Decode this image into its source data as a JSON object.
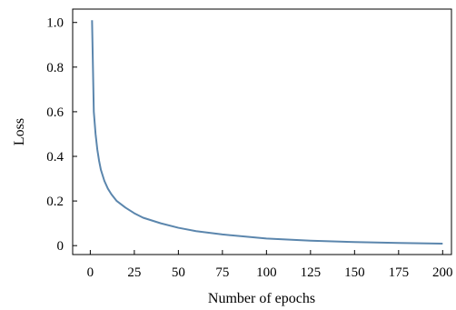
{
  "chart_data": {
    "type": "line",
    "xlabel": "Number of epochs",
    "ylabel": "Loss",
    "xlim": [
      -10,
      205
    ],
    "ylim": [
      -0.04,
      1.06
    ],
    "grid": false,
    "x_ticks": [
      0,
      25,
      50,
      75,
      100,
      125,
      150,
      175,
      200
    ],
    "x_tick_labels": [
      "0",
      "25",
      "50",
      "75",
      "100",
      "125",
      "150",
      "175",
      "200"
    ],
    "y_ticks": [
      0,
      0.2,
      0.4,
      0.6,
      0.8,
      1.0
    ],
    "y_tick_labels": [
      "0",
      "0.2",
      "0.4",
      "0.6",
      "0.8",
      "1.0"
    ],
    "series": [
      {
        "color": "#5b86ad",
        "x": [
          1,
          2,
          3,
          4,
          5,
          6,
          8,
          10,
          12,
          15,
          20,
          25,
          30,
          40,
          50,
          60,
          75,
          100,
          125,
          150,
          175,
          200
        ],
        "values": [
          1.01,
          0.6,
          0.5,
          0.43,
          0.38,
          0.34,
          0.29,
          0.255,
          0.23,
          0.2,
          0.17,
          0.145,
          0.125,
          0.1,
          0.08,
          0.065,
          0.05,
          0.032,
          0.022,
          0.016,
          0.012,
          0.009
        ]
      }
    ]
  }
}
